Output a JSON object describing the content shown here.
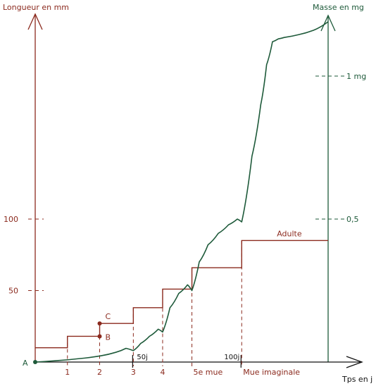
{
  "chart_data": {
    "type": "line",
    "title": "",
    "colors": {
      "length": "#8b2a1e",
      "mass": "#1e5a3a",
      "axis": "#8b2a1e",
      "dash": "#8b2a1e"
    },
    "left_axis": {
      "label": "Longueur en mm",
      "ticks": [
        {
          "value": 50,
          "label": "50"
        },
        {
          "value": 100,
          "label": "100"
        }
      ]
    },
    "right_axis": {
      "label": "Masse en mg",
      "ticks": [
        {
          "value": 0.5,
          "label": "0,5"
        },
        {
          "value": 1,
          "label": "1 mg"
        }
      ]
    },
    "x_axis": {
      "label": "Tps en j",
      "ticks": [
        {
          "value": 22,
          "label": "1"
        },
        {
          "value": 44,
          "label": "2"
        },
        {
          "value": 67,
          "label": "3"
        },
        {
          "value": 87,
          "label": "4"
        },
        {
          "value": 107,
          "label": "5e mue"
        },
        {
          "value": 141,
          "label": "Mue imaginale"
        }
      ],
      "day_marks": [
        {
          "value": 67,
          "label": "50j"
        },
        {
          "value": 141,
          "label": "100j"
        }
      ]
    },
    "series": [
      {
        "key": "length",
        "axis": "left",
        "style": "step",
        "x": [
          0,
          22,
          22,
          44,
          44,
          67,
          67,
          87,
          87,
          107,
          107,
          141,
          141,
          200
        ],
        "y": [
          10,
          10,
          18,
          18,
          27,
          27,
          38,
          38,
          51,
          51,
          66,
          66,
          85,
          85
        ]
      },
      {
        "key": "mass",
        "axis": "right",
        "style": "curve",
        "x": [
          0,
          15,
          30,
          45,
          55,
          62,
          67,
          72,
          78,
          84,
          87,
          92,
          98,
          104,
          107,
          112,
          118,
          125,
          132,
          138,
          141,
          148,
          154,
          158,
          162,
          166,
          170,
          180,
          190,
          200
        ],
        "y": [
          0,
          0.005,
          0.012,
          0.022,
          0.034,
          0.048,
          0.04,
          0.065,
          0.09,
          0.115,
          0.105,
          0.19,
          0.24,
          0.27,
          0.25,
          0.35,
          0.41,
          0.45,
          0.48,
          0.5,
          0.49,
          0.72,
          0.9,
          1.04,
          1.12,
          1.13,
          1.135,
          1.145,
          1.16,
          1.19
        ]
      }
    ],
    "point_labels": [
      {
        "label": "A",
        "series": "mass",
        "x": 0,
        "y": 0
      },
      {
        "label": "B",
        "series": "length",
        "x": 44,
        "y": 18
      },
      {
        "label": "C",
        "series": "length",
        "x": 44,
        "y": 27
      }
    ],
    "annotations": [
      {
        "text": "Adulte",
        "x": 165,
        "y": 85,
        "axis": "left"
      }
    ]
  }
}
